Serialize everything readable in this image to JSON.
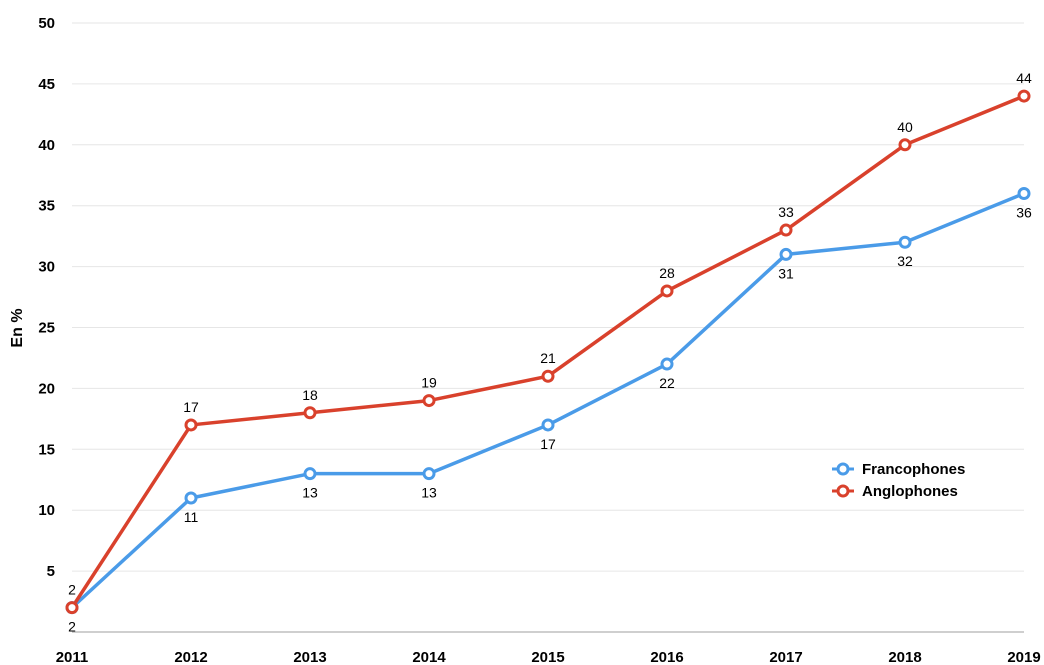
{
  "chart_data": {
    "type": "line",
    "title": "",
    "xlabel": "",
    "ylabel": "En %",
    "x": [
      "2011",
      "2012",
      "2013",
      "2014",
      "2015",
      "2016",
      "2017",
      "2018",
      "2019"
    ],
    "ylim": [
      0,
      50
    ],
    "yticks": [
      5,
      10,
      15,
      20,
      25,
      30,
      35,
      40,
      45,
      50
    ],
    "grid": true,
    "legend_position": "right",
    "series": [
      {
        "name": "Francophones",
        "color": "#4a9be8",
        "label_position": "below",
        "values": [
          2,
          11,
          13,
          13,
          17,
          22,
          31,
          32,
          36
        ]
      },
      {
        "name": "Anglophones",
        "color": "#d9412c",
        "label_position": "above",
        "values": [
          2,
          17,
          18,
          19,
          21,
          28,
          33,
          40,
          44
        ]
      }
    ]
  }
}
